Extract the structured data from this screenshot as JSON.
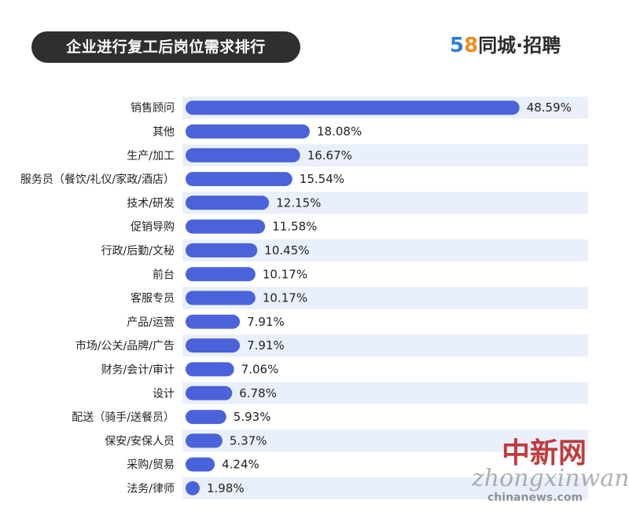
{
  "header": {
    "title": "企业进行复工后岗位需求排行",
    "logo_num_5": "5",
    "logo_num_8": "8",
    "logo_text": "同城·招聘"
  },
  "watermark": {
    "line1": "中新网",
    "line2": "zhongxinwang",
    "line3": "chinanews.com"
  },
  "colors": {
    "bar": "#4a63db",
    "row_shade": "#eaf0fb",
    "title_bg": "#2f2f2f"
  },
  "chart_data": {
    "type": "bar",
    "orientation": "horizontal",
    "categories": [
      "销售顾问",
      "其他",
      "生产/加工",
      "服务员（餐饮/礼仪/家政/酒店）",
      "技术/研发",
      "促销导购",
      "行政/后勤/文秘",
      "前台",
      "客服专员",
      "产品/运营",
      "市场/公关/品牌/广告",
      "财务/会计/审计",
      "设计",
      "配送（骑手/送餐员）",
      "保安/安保人员",
      "采购/贸易",
      "法务/律师"
    ],
    "values": [
      48.59,
      18.08,
      16.67,
      15.54,
      12.15,
      11.58,
      10.45,
      10.17,
      10.17,
      7.91,
      7.91,
      7.06,
      6.78,
      5.93,
      5.37,
      4.24,
      1.98
    ],
    "labels": [
      "48.59%",
      "18.08%",
      "16.67%",
      "15.54%",
      "12.15%",
      "11.58%",
      "10.45%",
      "10.17%",
      "10.17%",
      "7.91%",
      "7.91%",
      "7.06%",
      "6.78%",
      "5.93%",
      "5.37%",
      "4.24%",
      "1.98%"
    ],
    "title": "企业进行复工后岗位需求排行",
    "xlim": [
      0,
      50
    ]
  }
}
